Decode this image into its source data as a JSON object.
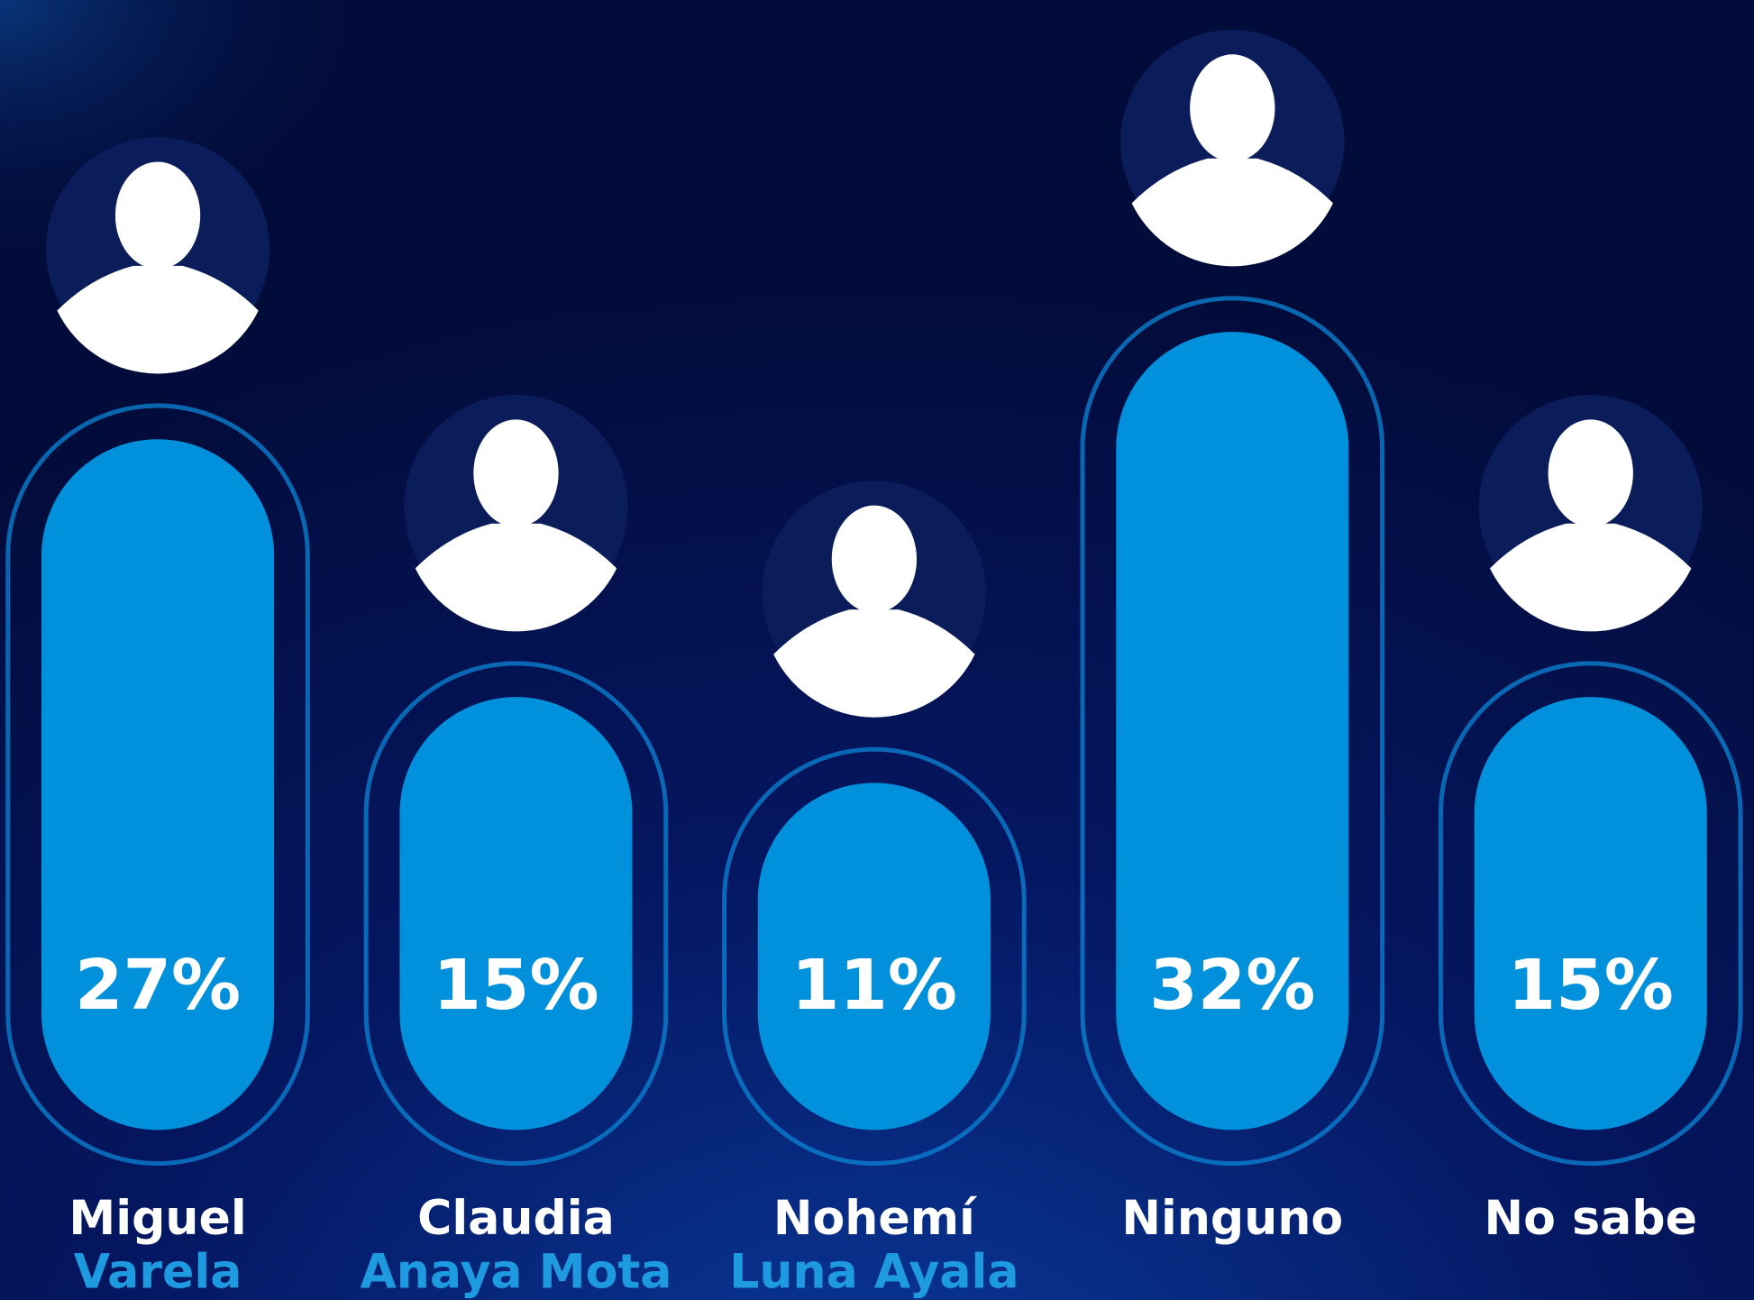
{
  "chart_data": {
    "type": "bar",
    "categories": [
      [
        "Miguel",
        "Varela"
      ],
      [
        "Claudia",
        "Anaya Mota"
      ],
      [
        "Nohemí",
        "Luna Ayala"
      ],
      [
        "Ninguno"
      ],
      [
        "No sabe"
      ]
    ],
    "values": [
      27,
      15,
      11,
      32,
      15
    ],
    "value_labels": [
      "27%",
      "15%",
      "11%",
      "32%",
      "15%"
    ],
    "color": "#0191dc"
  }
}
